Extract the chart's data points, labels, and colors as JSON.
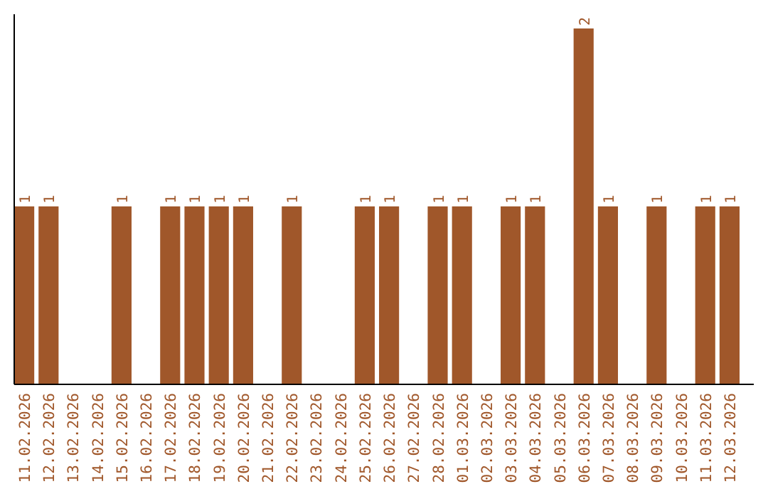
{
  "chart_data": {
    "type": "bar",
    "categories": [
      "11.02.2026",
      "12.02.2026",
      "13.02.2026",
      "14.02.2026",
      "15.02.2026",
      "16.02.2026",
      "17.02.2026",
      "18.02.2026",
      "19.02.2026",
      "20.02.2026",
      "21.02.2026",
      "22.02.2026",
      "23.02.2026",
      "24.02.2026",
      "25.02.2026",
      "26.02.2026",
      "27.02.2026",
      "28.02.2026",
      "01.03.2026",
      "02.03.2026",
      "03.03.2026",
      "04.03.2026",
      "05.03.2026",
      "06.03.2026",
      "07.03.2026",
      "08.03.2026",
      "09.03.2026",
      "10.03.2026",
      "11.03.2026",
      "12.03.2026"
    ],
    "values": [
      1,
      1,
      0,
      0,
      1,
      0,
      1,
      1,
      1,
      1,
      0,
      1,
      0,
      0,
      1,
      1,
      0,
      1,
      1,
      0,
      1,
      1,
      0,
      2,
      1,
      0,
      1,
      0,
      1,
      1
    ],
    "value_labels": [
      "1",
      "1",
      null,
      null,
      "1",
      null,
      "1",
      "1",
      "1",
      "1",
      null,
      "1",
      null,
      null,
      "1",
      "1",
      null,
      "1",
      "1",
      null,
      "1",
      "1",
      null,
      "2",
      "1",
      null,
      "1",
      null,
      "1",
      "1"
    ],
    "color": "#a0572a",
    "ylim": [
      0,
      2.08
    ],
    "tick_labels": "x"
  }
}
